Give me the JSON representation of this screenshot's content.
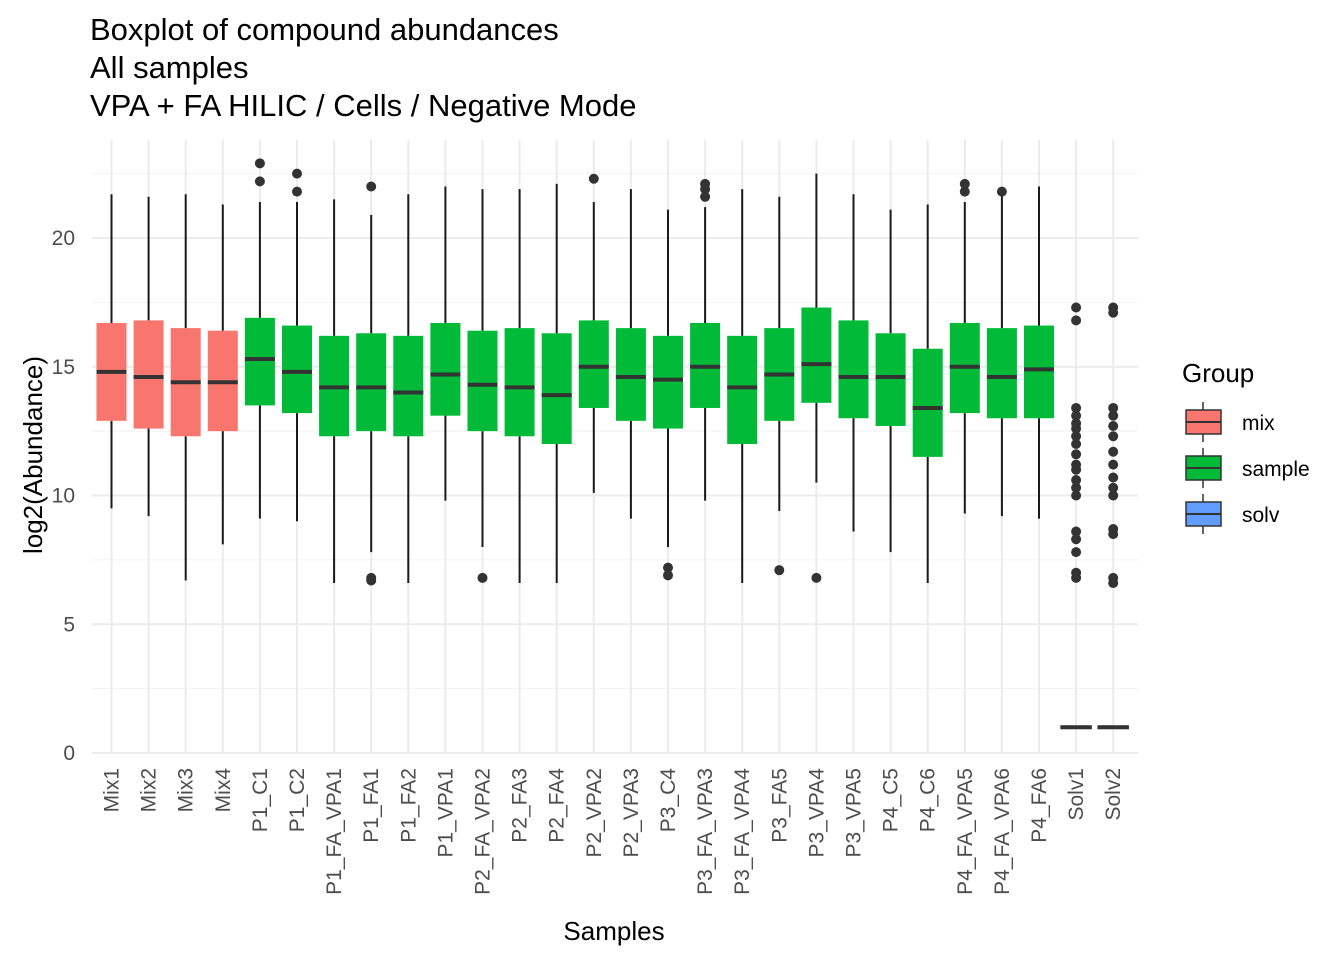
{
  "chart_data": {
    "type": "boxplot",
    "title": [
      "Boxplot of compound abundances",
      "All samples",
      "VPA + FA HILIC / Cells / Negative Mode"
    ],
    "xlabel": "Samples",
    "ylabel": "log2(Abundance)",
    "ylim": [
      0,
      22.5
    ],
    "yticks": [
      0,
      5,
      10,
      15,
      20
    ],
    "grid": true,
    "legend": {
      "title": "Group",
      "position": "right",
      "entries": [
        {
          "name": "mix",
          "color": "#F8766D"
        },
        {
          "name": "sample",
          "color": "#00BA38"
        },
        {
          "name": "solv",
          "color": "#619CFF"
        }
      ]
    },
    "boxes": [
      {
        "name": "Mix1",
        "group": "mix",
        "q1": 12.9,
        "median": 14.8,
        "q3": 16.7,
        "lower": 9.5,
        "upper": 21.7,
        "outliers": []
      },
      {
        "name": "Mix2",
        "group": "mix",
        "q1": 12.6,
        "median": 14.6,
        "q3": 16.8,
        "lower": 9.2,
        "upper": 21.6,
        "outliers": []
      },
      {
        "name": "Mix3",
        "group": "mix",
        "q1": 12.3,
        "median": 14.4,
        "q3": 16.5,
        "lower": 6.7,
        "upper": 21.7,
        "outliers": []
      },
      {
        "name": "Mix4",
        "group": "mix",
        "q1": 12.5,
        "median": 14.4,
        "q3": 16.4,
        "lower": 8.1,
        "upper": 21.3,
        "outliers": []
      },
      {
        "name": "P1_C1",
        "group": "sample",
        "q1": 13.5,
        "median": 15.3,
        "q3": 16.9,
        "lower": 9.1,
        "upper": 21.4,
        "outliers": [
          22.2,
          22.9
        ]
      },
      {
        "name": "P1_C2",
        "group": "sample",
        "q1": 13.2,
        "median": 14.8,
        "q3": 16.6,
        "lower": 9.0,
        "upper": 21.4,
        "outliers": [
          21.8,
          22.5
        ]
      },
      {
        "name": "P1_FA_VPA1",
        "group": "sample",
        "q1": 12.3,
        "median": 14.2,
        "q3": 16.2,
        "lower": 6.6,
        "upper": 21.5,
        "outliers": []
      },
      {
        "name": "P1_FA1",
        "group": "sample",
        "q1": 12.5,
        "median": 14.2,
        "q3": 16.3,
        "lower": 7.8,
        "upper": 20.9,
        "outliers": [
          6.7,
          6.8,
          22.0
        ]
      },
      {
        "name": "P1_FA2",
        "group": "sample",
        "q1": 12.3,
        "median": 14.0,
        "q3": 16.2,
        "lower": 6.6,
        "upper": 21.7,
        "outliers": []
      },
      {
        "name": "P1_VPA1",
        "group": "sample",
        "q1": 13.1,
        "median": 14.7,
        "q3": 16.7,
        "lower": 9.8,
        "upper": 22.0,
        "outliers": []
      },
      {
        "name": "P2_FA_VPA2",
        "group": "sample",
        "q1": 12.5,
        "median": 14.3,
        "q3": 16.4,
        "lower": 8.0,
        "upper": 21.9,
        "outliers": [
          6.8
        ]
      },
      {
        "name": "P2_FA3",
        "group": "sample",
        "q1": 12.3,
        "median": 14.2,
        "q3": 16.5,
        "lower": 6.6,
        "upper": 21.9,
        "outliers": []
      },
      {
        "name": "P2_FA4",
        "group": "sample",
        "q1": 12.0,
        "median": 13.9,
        "q3": 16.3,
        "lower": 6.6,
        "upper": 22.1,
        "outliers": []
      },
      {
        "name": "P2_VPA2",
        "group": "sample",
        "q1": 13.4,
        "median": 15.0,
        "q3": 16.8,
        "lower": 10.1,
        "upper": 21.4,
        "outliers": [
          22.3
        ]
      },
      {
        "name": "P2_VPA3",
        "group": "sample",
        "q1": 12.9,
        "median": 14.6,
        "q3": 16.5,
        "lower": 9.1,
        "upper": 21.9,
        "outliers": []
      },
      {
        "name": "P3_C4",
        "group": "sample",
        "q1": 12.6,
        "median": 14.5,
        "q3": 16.2,
        "lower": 8.0,
        "upper": 21.1,
        "outliers": [
          6.9,
          7.2
        ]
      },
      {
        "name": "P3_FA_VPA3",
        "group": "sample",
        "q1": 13.4,
        "median": 15.0,
        "q3": 16.7,
        "lower": 9.8,
        "upper": 21.2,
        "outliers": [
          21.6,
          21.9,
          22.1
        ]
      },
      {
        "name": "P3_FA_VPA4",
        "group": "sample",
        "q1": 12.0,
        "median": 14.2,
        "q3": 16.2,
        "lower": 6.6,
        "upper": 21.9,
        "outliers": []
      },
      {
        "name": "P3_FA5",
        "group": "sample",
        "q1": 12.9,
        "median": 14.7,
        "q3": 16.5,
        "lower": 9.4,
        "upper": 21.6,
        "outliers": [
          7.1
        ]
      },
      {
        "name": "P3_VPA4",
        "group": "sample",
        "q1": 13.6,
        "median": 15.1,
        "q3": 17.3,
        "lower": 10.5,
        "upper": 22.5,
        "outliers": [
          6.8
        ]
      },
      {
        "name": "P3_VPA5",
        "group": "sample",
        "q1": 13.0,
        "median": 14.6,
        "q3": 16.8,
        "lower": 8.6,
        "upper": 21.7,
        "outliers": []
      },
      {
        "name": "P4_C5",
        "group": "sample",
        "q1": 12.7,
        "median": 14.6,
        "q3": 16.3,
        "lower": 7.8,
        "upper": 21.1,
        "outliers": []
      },
      {
        "name": "P4_C6",
        "group": "sample",
        "q1": 11.5,
        "median": 13.4,
        "q3": 15.7,
        "lower": 6.6,
        "upper": 21.3,
        "outliers": []
      },
      {
        "name": "P4_FA_VPA5",
        "group": "sample",
        "q1": 13.2,
        "median": 15.0,
        "q3": 16.7,
        "lower": 9.3,
        "upper": 21.4,
        "outliers": [
          21.8,
          22.1
        ]
      },
      {
        "name": "P4_FA_VPA6",
        "group": "sample",
        "q1": 13.0,
        "median": 14.6,
        "q3": 16.5,
        "lower": 9.2,
        "upper": 21.8,
        "outliers": [
          21.8
        ]
      },
      {
        "name": "P4_FA6",
        "group": "sample",
        "q1": 13.0,
        "median": 14.9,
        "q3": 16.6,
        "lower": 9.1,
        "upper": 22.0,
        "outliers": []
      },
      {
        "name": "Solv1",
        "group": "solv",
        "q1": 0.95,
        "median": 1.0,
        "q3": 1.05,
        "lower": 0.95,
        "upper": 1.05,
        "outliers": [
          6.8,
          7.0,
          7.8,
          8.3,
          8.6,
          10.0,
          10.3,
          10.6,
          11.0,
          11.2,
          11.6,
          12.0,
          12.3,
          12.6,
          12.8,
          13.1,
          13.4,
          16.8,
          17.3
        ]
      },
      {
        "name": "Solv2",
        "group": "solv",
        "q1": 0.95,
        "median": 1.0,
        "q3": 1.05,
        "lower": 0.95,
        "upper": 1.05,
        "outliers": [
          6.6,
          6.8,
          8.5,
          8.7,
          10.0,
          10.3,
          10.7,
          11.2,
          11.7,
          12.3,
          12.7,
          13.1,
          13.4,
          17.1,
          17.3
        ]
      }
    ]
  }
}
